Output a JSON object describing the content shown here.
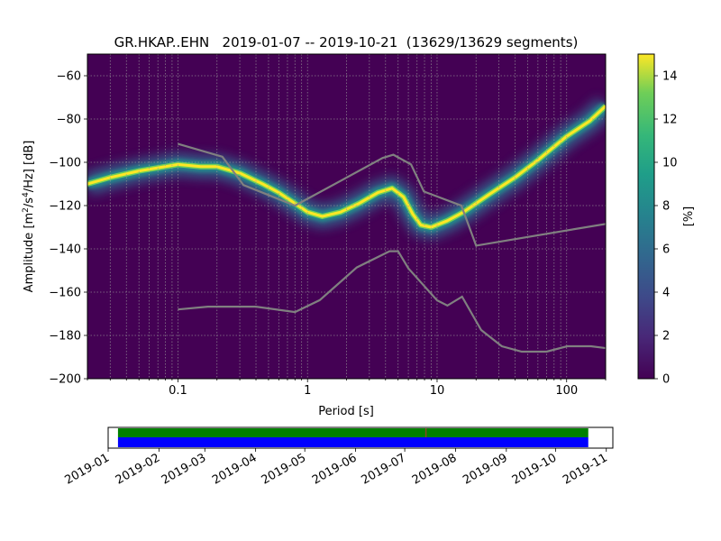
{
  "chart_data": [
    {
      "type": "heatmap",
      "title": "GR.HKAP..EHN   2019-01-07 -- 2019-10-21  (13629/13629 segments)",
      "xlabel": "Period [s]",
      "ylabel_base": "Amplitude [m",
      "ylabel_sup1": "2",
      "ylabel_mid": "/s",
      "ylabel_sup2": "4",
      "ylabel_end": "/Hz] [dB]",
      "x_scale": "log",
      "xlim": [
        0.02,
        200
      ],
      "ylim": [
        -200,
        -50
      ],
      "x_tick_labels": [
        "0.1",
        "1",
        "10",
        "100"
      ],
      "x_tick_values": [
        0.1,
        1,
        10,
        100
      ],
      "y_tick_values": [
        -60,
        -80,
        -100,
        -120,
        -140,
        -160,
        -180,
        -200
      ],
      "y_tick_labels": [
        "−60",
        "−80",
        "−100",
        "−120",
        "−140",
        "−160",
        "−180",
        "−200"
      ],
      "grid": true,
      "colorbar": {
        "label": "[%]",
        "range": [
          0,
          15
        ],
        "tick_values": [
          0,
          2,
          4,
          6,
          8,
          10,
          12,
          14
        ],
        "tick_labels": [
          "0",
          "2",
          "4",
          "6",
          "8",
          "10",
          "12",
          "14"
        ],
        "colormap": "viridis"
      },
      "psd_mode_curve": {
        "period": [
          0.02,
          0.03,
          0.05,
          0.1,
          0.15,
          0.2,
          0.3,
          0.45,
          0.6,
          0.8,
          1.0,
          1.3,
          1.8,
          2.5,
          3.5,
          4.5,
          5.5,
          6.5,
          7.5,
          9,
          12,
          16,
          25,
          40,
          60,
          100,
          150,
          200
        ],
        "amplitude_db": [
          -110,
          -107,
          -104,
          -101,
          -102,
          -102,
          -105,
          -110,
          -114,
          -119,
          -123,
          -125,
          -123,
          -119,
          -114,
          -112,
          -116,
          -124,
          -129,
          -130,
          -127,
          -123,
          -115,
          -107,
          -99,
          -88,
          -81,
          -74
        ]
      },
      "noise_model_high": {
        "period": [
          0.1,
          0.22,
          0.32,
          0.8,
          3.8,
          4.6,
          6.3,
          7.9,
          15.4,
          20,
          354
        ],
        "amplitude_db": [
          -91.5,
          -97.4,
          -110.5,
          -120,
          -98,
          -96.5,
          -101,
          -113.5,
          -120,
          -138.5,
          -126
        ]
      },
      "noise_model_low": {
        "period": [
          0.1,
          0.17,
          0.4,
          0.8,
          1.24,
          2.4,
          4.3,
          5.0,
          6.0,
          10.0,
          12.0,
          15.6,
          21.9,
          31.6,
          45.0,
          70.0,
          101.0,
          154.0,
          328.0
        ],
        "amplitude_db": [
          -168,
          -166.7,
          -166.7,
          -169.2,
          -163.7,
          -148.6,
          -141.1,
          -141.1,
          -149,
          -163.8,
          -166.2,
          -162.1,
          -177.5,
          -185,
          -187.5,
          -187.5,
          -185,
          -185,
          -187.5
        ]
      }
    },
    {
      "type": "bar",
      "x_tick_labels": [
        "2019-01",
        "2019-02",
        "2019-03",
        "2019-04",
        "2019-05",
        "2019-06",
        "2019-07",
        "2019-08",
        "2019-09",
        "2019-10",
        "2019-11"
      ],
      "xlim": [
        "2019-01-01",
        "2019-11-05"
      ],
      "data_range": [
        "2019-01-07",
        "2019-10-21"
      ],
      "gap_marker": "2019-07-14",
      "colors": {
        "available": "#008000",
        "used": "#0000ff",
        "gap": "#c03030"
      }
    }
  ]
}
